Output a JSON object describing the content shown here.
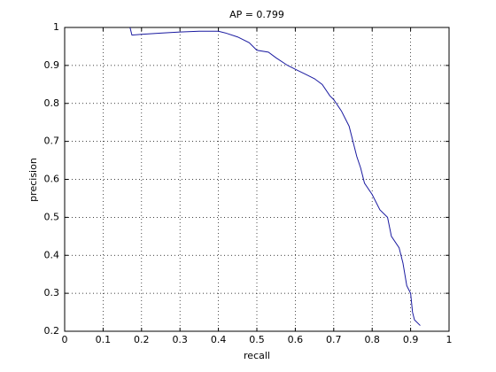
{
  "chart_data": {
    "type": "line",
    "title": "AP = 0.799",
    "x_label": "recall",
    "y_label": "precision",
    "x": [
      0.17,
      0.17,
      0.175,
      0.2,
      0.25,
      0.3,
      0.35,
      0.4,
      0.42,
      0.45,
      0.48,
      0.5,
      0.53,
      0.55,
      0.58,
      0.6,
      0.63,
      0.65,
      0.67,
      0.69,
      0.7,
      0.72,
      0.74,
      0.75,
      0.76,
      0.77,
      0.78,
      0.8,
      0.82,
      0.84,
      0.85,
      0.87,
      0.88,
      0.89,
      0.9,
      0.905,
      0.91,
      0.925
    ],
    "values": [
      1,
      1,
      0.98,
      0.982,
      0.985,
      0.988,
      0.99,
      0.99,
      0.985,
      0.975,
      0.96,
      0.94,
      0.935,
      0.92,
      0.9,
      0.89,
      0.875,
      0.865,
      0.85,
      0.82,
      0.81,
      0.78,
      0.74,
      0.7,
      0.66,
      0.63,
      0.59,
      0.56,
      0.52,
      0.5,
      0.45,
      0.42,
      0.38,
      0.32,
      0.3,
      0.25,
      0.23,
      0.215
    ],
    "color": "#1a1aa0",
    "xlim": [
      0,
      1
    ],
    "xticks": [
      0,
      0.1,
      0.2,
      0.3,
      0.4,
      0.5,
      0.6,
      0.7,
      0.8,
      0.9,
      1
    ],
    "ylim": [
      0.2,
      1
    ],
    "yticks": [
      0.2,
      0.3,
      0.4,
      0.5,
      0.6,
      0.7,
      0.8,
      0.9,
      1
    ],
    "grid": true
  }
}
